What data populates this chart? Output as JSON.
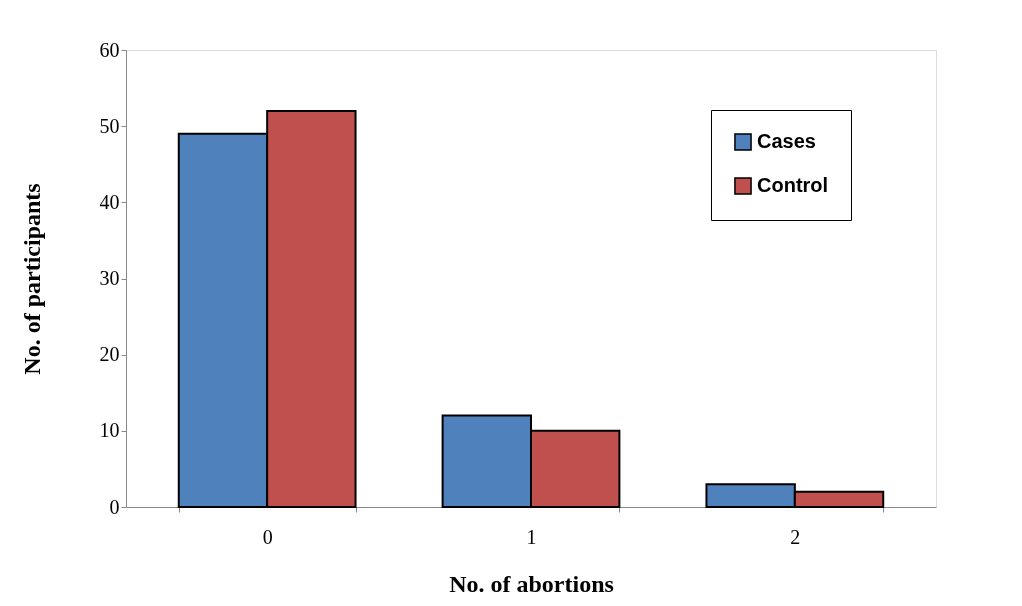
{
  "chart_data": {
    "type": "bar",
    "xlabel": "No. of abortions",
    "ylabel": "No. of participants",
    "categories": [
      "0",
      "1",
      "2"
    ],
    "series": [
      {
        "name": "Cases",
        "color": "#4f81bd",
        "values": [
          49,
          12,
          3
        ]
      },
      {
        "name": "Control",
        "color": "#c0504d",
        "values": [
          52,
          10,
          2
        ]
      }
    ],
    "ylim": [
      0,
      60
    ],
    "yticks": [
      0,
      10,
      20,
      30,
      40,
      50,
      60
    ],
    "grid": false,
    "legend": "top right"
  }
}
